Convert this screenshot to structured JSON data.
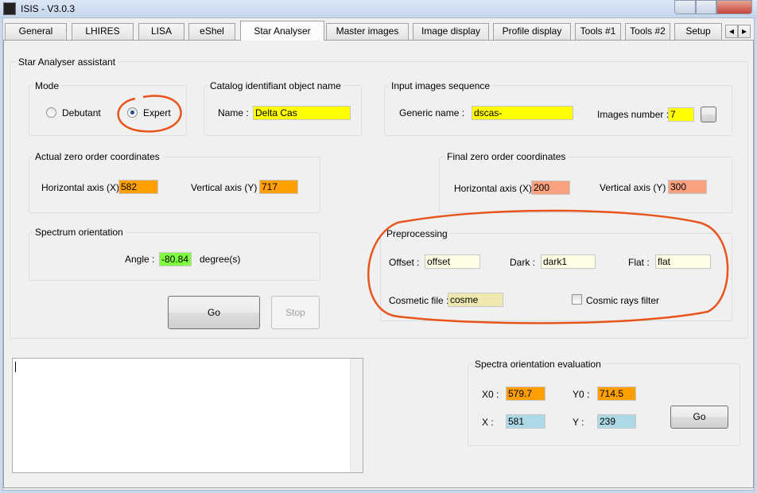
{
  "window": {
    "title": "ISIS - V3.0.3"
  },
  "tabs": [
    "General",
    "LHIRES",
    "LISA",
    "eShel",
    "Star Analyser",
    "Master images",
    "Image display",
    "Profile display",
    "Tools #1",
    "Tools #2",
    "Setup"
  ],
  "assistant": {
    "title": "Star Analyser assistant",
    "mode": {
      "title": "Mode",
      "debutant": "Debutant",
      "expert": "Expert"
    },
    "catalog": {
      "title": "Catalog identifiant object name",
      "name_label": "Name :",
      "name_value": "Delta Cas"
    },
    "input_sequence": {
      "title": "Input images sequence",
      "generic_label": "Generic name :",
      "generic_value": "dscas-",
      "number_label": "Images number :",
      "number_value": "7"
    },
    "actual_zero": {
      "title": "Actual zero order coordinates",
      "x_label": "Horizontal axis (X) :",
      "x_value": "582",
      "y_label": "Vertical axis (Y) :",
      "y_value": "717"
    },
    "final_zero": {
      "title": "Final zero order coordinates",
      "x_label": "Horizontal axis (X) :",
      "x_value": "200",
      "y_label": "Vertical axis (Y) :",
      "y_value": "300"
    },
    "orientation": {
      "title": "Spectrum orientation",
      "angle_label": "Angle :",
      "angle_value": "-80.84",
      "unit": "degree(s)"
    },
    "buttons": {
      "go": "Go",
      "stop": "Stop"
    },
    "preprocessing": {
      "title": "Preprocessing",
      "offset_label": "Offset :",
      "offset_value": "offset",
      "dark_label": "Dark :",
      "dark_value": "dark1",
      "flat_label": "Flat :",
      "flat_value": "flat",
      "cosmetic_label": "Cosmetic file :",
      "cosmetic_value": "cosme",
      "cosmic_filter": "Cosmic rays filter"
    }
  },
  "evaluation": {
    "title": "Spectra orientation evaluation",
    "x0_label": "X0 :",
    "x0_value": "579.7",
    "y0_label": "Y0 :",
    "y0_value": "714.5",
    "x_label": "X :",
    "x_value": "581",
    "y_label": "Y :",
    "y_value": "239",
    "go": "Go"
  }
}
